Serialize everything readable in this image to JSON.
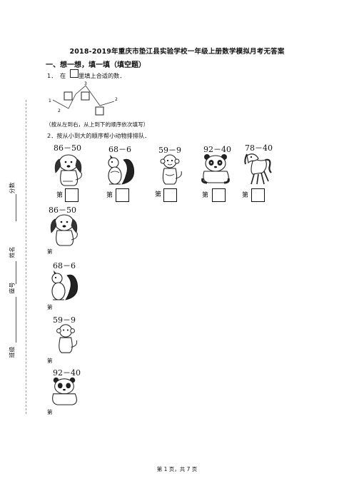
{
  "title": "2018-2019年重庆市垫江县实验学校一年级上册数学模拟月考无答案",
  "section1": "一、想一想，填一填（填空题）",
  "q1": {
    "num": "1．",
    "pre": "在",
    "post": "里填上合适的数．",
    "nums": {
      "top": "3",
      "left": "1",
      "bottom": "2",
      "right": "2"
    },
    "note": "（按从左到右，从上到下的顺序依次填写）"
  },
  "q2": {
    "label": "2．按从小到大的顺序帮小动物排排队．",
    "animals": [
      {
        "expr": "86－50",
        "icon": "puppy-icon"
      },
      {
        "expr": "68－6",
        "icon": "squirrel-icon"
      },
      {
        "expr": "59－9",
        "icon": "monkey-icon"
      },
      {
        "expr": "92－40",
        "icon": "panda-icon"
      },
      {
        "expr": "78－40",
        "icon": "horse-icon"
      }
    ],
    "di": "第"
  },
  "margin": {
    "score": "分数",
    "name": "姓名",
    "id": "座号",
    "class": "班级"
  },
  "footer": "第 1 页，共 7 页"
}
